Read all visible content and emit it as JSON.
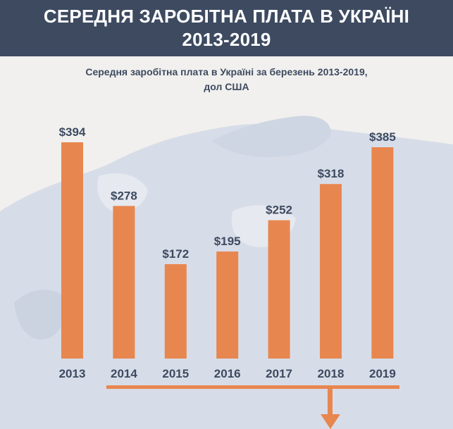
{
  "banner": {
    "line1": "СЕРЕДНЯ ЗАРОБІТНА ПЛАТА В УКРАЇНІ",
    "line2": "2013-2019"
  },
  "chart_data": {
    "type": "bar",
    "title": "Середня заробітна плата в Україні за березень 2013-2019,",
    "subtitle": "дол США",
    "categories": [
      "2013",
      "2014",
      "2015",
      "2016",
      "2017",
      "2018",
      "2019"
    ],
    "values": [
      394,
      278,
      172,
      195,
      252,
      318,
      385
    ],
    "value_labels": [
      "$394",
      "$278",
      "$172",
      "$195",
      "$252",
      "$318",
      "$385"
    ],
    "bar_color": "#e8864f",
    "text_color": "#3d4a60",
    "map_color": "#d7dde8",
    "grid": false,
    "legend": "none"
  }
}
